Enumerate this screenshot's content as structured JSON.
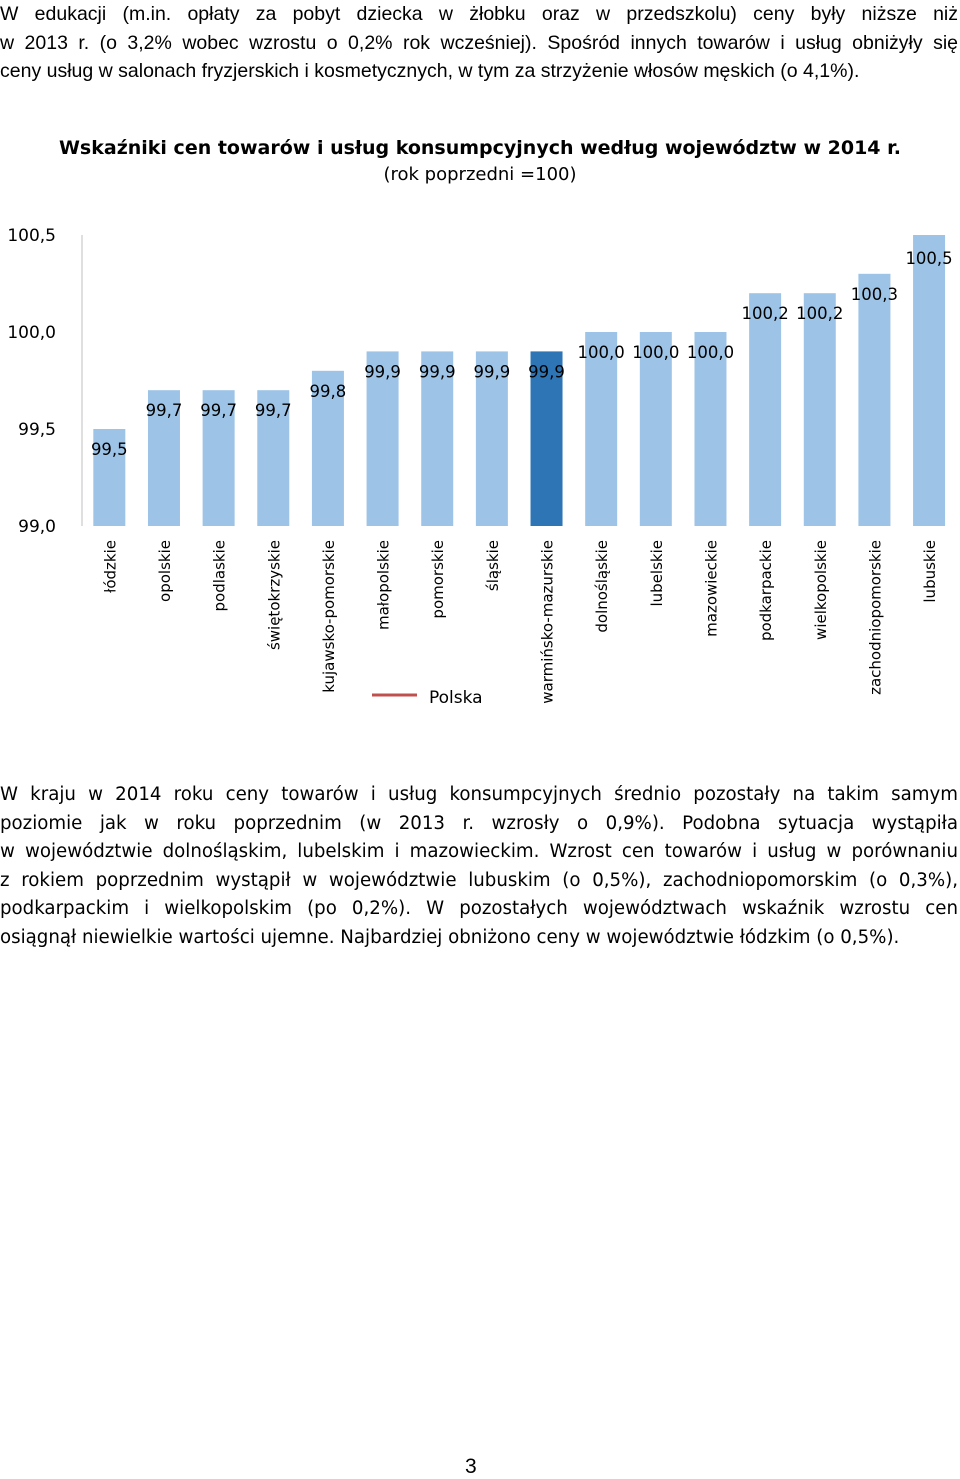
{
  "intro": {
    "lines": [
      "W edukacji (m.in. opłaty za pobyt dziecka w żłobku oraz w przedszkolu) ceny były niższe niż",
      "w 2013 r. (o 3,2% wobec wzrostu o 0,2% rok wcześniej). Spośród innych towarów i usług obniżyły się",
      "ceny usług w salonach fryzjerskich i kosmetycznych, w tym za strzyżenie włosów męskich (o 4,1%)."
    ]
  },
  "chart_data": {
    "type": "bar",
    "title": "Wskaźniki cen towarów i usług konsumpcyjnych według województw w 2014 r.",
    "subtitle": "(rok poprzedni =100)",
    "categories": [
      "łódzkie",
      "opolskie",
      "podlaskie",
      "świętokrzyskie",
      "kujawsko-pomorskie",
      "małopolskie",
      "pomorskie",
      "śląskie",
      "warmińsko-mazurskie",
      "dolnośląskie",
      "lubelskie",
      "mazowieckie",
      "podkarpackie",
      "wielkopolskie",
      "zachodniopomorskie",
      "lubuskie"
    ],
    "values": [
      99.5,
      99.7,
      99.7,
      99.7,
      99.8,
      99.9,
      99.9,
      99.9,
      99.9,
      100.0,
      100.0,
      100.0,
      100.2,
      100.2,
      100.3,
      100.5
    ],
    "value_labels": [
      "99,5",
      "99,7",
      "99,7",
      "99,7",
      "99,8",
      "99,9",
      "99,9",
      "99,9",
      "99,9",
      "100,0",
      "100,0",
      "100,0",
      "100,2",
      "100,2",
      "100,3",
      "100,5"
    ],
    "highlight_index": 8,
    "ylim": [
      99.0,
      100.5
    ],
    "yticks": [
      99.0,
      99.5,
      100.0,
      100.5
    ],
    "ytick_labels": [
      "99,0",
      "99,5",
      "100,0",
      "100,5"
    ],
    "legend": [
      {
        "name": "Polska",
        "marker": "line",
        "color": "#c0504d"
      }
    ],
    "colors": {
      "bar": "#9dc3e6",
      "highlight": "#2e75b6",
      "legend_line": "#c0504d"
    },
    "grid": false
  },
  "summary": {
    "lines": [
      "W kraju w 2014 roku ceny towarów i usług konsumpcyjnych średnio pozostały na takim samym",
      "poziomie jak w roku poprzednim (w 2013 r. wzrosły o 0,9%). Podobna sytuacja wystąpiła",
      "w województwie dolnośląskim, lubelskim i mazowieckim. Wzrost cen towarów i usług w porównaniu",
      "z rokiem poprzednim wystąpił w województwie lubuskim (o 0,5%), zachodniopomorskim (o 0,3%),",
      "podkarpackim i wielkopolskim (po 0,2%). W pozostałych województwach wskaźnik wzrostu cen",
      "osiągnął niewielkie wartości ujemne. Najbardziej obniżono ceny w województwie łódzkim (o 0,5%)."
    ]
  },
  "page": {
    "number": "3"
  }
}
